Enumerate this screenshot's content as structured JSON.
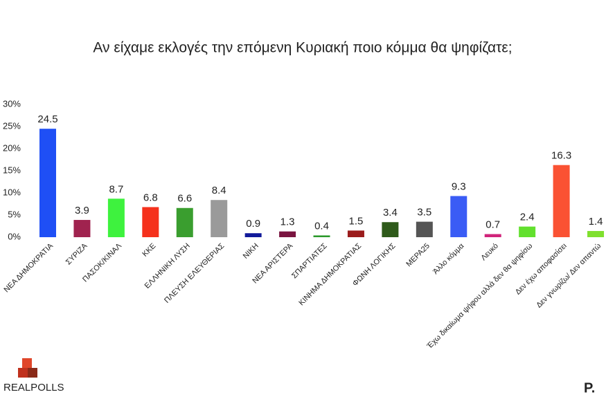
{
  "chart_data": {
    "type": "bar",
    "title": "Αν είχαμε εκλογές την επόμενη Κυριακή ποιο κόμμα θα ψηφίζατε;",
    "categories": [
      "ΝΕΑ ΔΗΜΟΚΡΑΤΙΑ",
      "ΣΥΡΙΖΑ",
      "ΠΑΣΟΚ/ΚΙΝΑΛ",
      "ΚΚΕ",
      "ΕΛΛΗΝΙΚΗ ΛΥΣΗ",
      "ΠΛΕΥΣΗ ΕΛΕΥΘΕΡΙΑΣ",
      "ΝΙΚΗ",
      "ΝΕΑ ΑΡΙΣΤΕΡΑ",
      "ΣΠΑΡΤΙΑΤΕΣ",
      "ΚΙΝΗΜΑ ΔΗΜΟΚΡΑΤΙΑΣ",
      "ΦΩΝΗ ΛΟΓΙΚΗΣ",
      "ΜΕΡΑ25",
      "Άλλο κόμμα",
      "Λευκό",
      "Έχω δικαίωμα ψήφου αλλά δεν θα ψηφίσω",
      "Δεν έχω αποφασίσει",
      "Δεν γνωρίζω/ Δεν απαντώ"
    ],
    "values": [
      24.5,
      3.9,
      8.7,
      6.8,
      6.6,
      8.4,
      0.9,
      1.3,
      0.4,
      1.5,
      3.4,
      3.5,
      9.3,
      0.7,
      2.4,
      16.3,
      1.4
    ],
    "colors": [
      "#1f4ff5",
      "#a0234f",
      "#3ef23e",
      "#f5311c",
      "#3a9e2f",
      "#9a9a9a",
      "#111a9a",
      "#7a1440",
      "#2c9a2c",
      "#9b1c1c",
      "#2e5a1a",
      "#555555",
      "#3a5cf5",
      "#d0237a",
      "#62e02e",
      "#fa5233",
      "#7fe02e"
    ],
    "ylim": [
      0,
      30
    ],
    "yticks": [
      {
        "value": 0,
        "label": "0%"
      },
      {
        "value": 5,
        "label": "5%"
      },
      {
        "value": 10,
        "label": "10%"
      },
      {
        "value": 15,
        "label": "15%"
      },
      {
        "value": 20,
        "label": "20%"
      },
      {
        "value": 25,
        "label": "25%"
      },
      {
        "value": 30,
        "label": "30%"
      }
    ],
    "grid": false
  },
  "logos": {
    "left": "REALPOLLS",
    "right": "P."
  }
}
